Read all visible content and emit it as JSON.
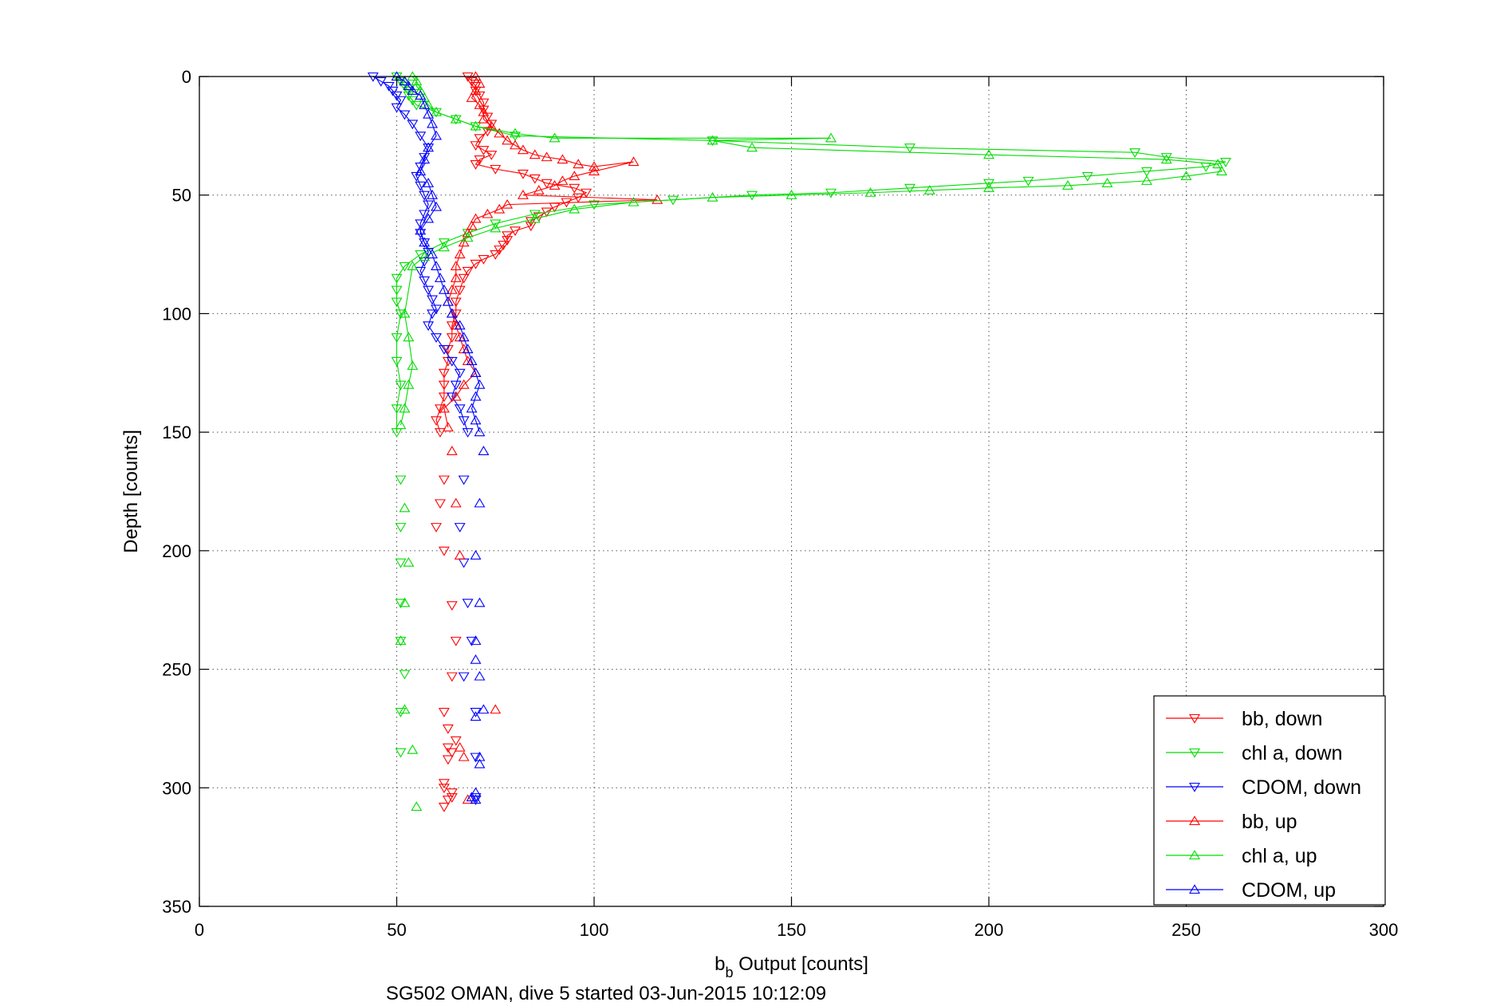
{
  "chart_data": {
    "type": "line",
    "xlabel": "b",
    "xlabel_sub": "b",
    "xlabel_rest": " Output [counts]",
    "ylabel": "Depth [counts]",
    "caption": "SG502 OMAN, dive 5 started 03-Jun-2015 10:12:09",
    "xlim": [
      0,
      300
    ],
    "ylim": [
      0,
      350
    ],
    "y_reversed": true,
    "x_ticks": [
      0,
      50,
      100,
      150,
      200,
      250,
      300
    ],
    "y_ticks": [
      0,
      50,
      100,
      150,
      200,
      250,
      300,
      350
    ],
    "grid": true,
    "legend_position": "bottom-right",
    "series": [
      {
        "name": "bb, down",
        "color": "#ff0000",
        "marker": "triangle-down",
        "x": [
          68,
          69,
          70,
          70,
          71,
          72,
          72,
          73,
          74,
          73,
          71,
          70,
          72,
          74,
          71,
          70,
          75,
          82,
          85,
          88,
          95,
          98,
          96,
          93,
          90,
          88,
          86,
          84,
          84,
          80,
          78,
          78,
          77,
          76,
          75,
          72,
          70,
          68,
          67,
          66,
          65,
          65,
          64,
          64,
          63,
          63,
          62,
          62,
          62,
          61,
          60,
          61,
          62,
          61,
          60,
          62,
          64,
          65,
          64,
          62,
          63,
          62,
          64,
          62,
          63,
          64,
          62,
          63,
          64,
          65,
          63
        ],
        "y": [
          0,
          2,
          4,
          6,
          8,
          11,
          14,
          17,
          20,
          23,
          26,
          29,
          31,
          33,
          35,
          37,
          39,
          41,
          43,
          45,
          47,
          49,
          51,
          53,
          55,
          57,
          59,
          61,
          63,
          65,
          67,
          69,
          71,
          73,
          75,
          77,
          79,
          82,
          85,
          90,
          95,
          100,
          105,
          110,
          115,
          120,
          125,
          130,
          135,
          140,
          145,
          150,
          170,
          180,
          190,
          200,
          223,
          238,
          253,
          268,
          283,
          298,
          304,
          308,
          305,
          302,
          300,
          288,
          285,
          280,
          275
        ]
      },
      {
        "name": "chl a, down",
        "color": "#00dd00",
        "marker": "triangle-down",
        "x": [
          50,
          51,
          52,
          53,
          53,
          54,
          55,
          60,
          65,
          70,
          80,
          130,
          180,
          237,
          245,
          260,
          255,
          240,
          225,
          210,
          200,
          180,
          160,
          140,
          120,
          100,
          85,
          75,
          68,
          62,
          56,
          52,
          50,
          50,
          50,
          51,
          50,
          50,
          51,
          50,
          50,
          51,
          51,
          51,
          51,
          51,
          52,
          51,
          51
        ],
        "y": [
          0,
          2,
          4,
          6,
          8,
          10,
          12,
          15,
          18,
          21,
          25,
          27,
          30,
          32,
          34,
          36,
          38,
          40,
          42,
          44,
          45,
          47,
          49,
          50,
          52,
          54,
          58,
          62,
          66,
          70,
          75,
          80,
          85,
          90,
          95,
          100,
          110,
          120,
          130,
          140,
          150,
          170,
          190,
          205,
          222,
          238,
          252,
          268,
          285
        ]
      },
      {
        "name": "CDOM, down",
        "color": "#0000ff",
        "marker": "triangle-down",
        "x": [
          44,
          46,
          48,
          49,
          50,
          51,
          50,
          52,
          54,
          56,
          58,
          57,
          56,
          55,
          56,
          57,
          58,
          57,
          56,
          56,
          57,
          58,
          57,
          56,
          57,
          58,
          59,
          60,
          59,
          58,
          60,
          62,
          64,
          66,
          65,
          64,
          66,
          67,
          68,
          67,
          66,
          67,
          68,
          69,
          67,
          70,
          70,
          70,
          70
        ],
        "y": [
          0,
          2,
          4,
          6,
          8,
          10,
          13,
          16,
          20,
          25,
          30,
          34,
          38,
          42,
          46,
          50,
          54,
          58,
          62,
          66,
          70,
          74,
          78,
          82,
          86,
          90,
          94,
          98,
          100,
          105,
          110,
          115,
          120,
          125,
          130,
          135,
          140,
          145,
          150,
          170,
          190,
          205,
          222,
          238,
          253,
          268,
          287,
          304,
          305
        ]
      },
      {
        "name": "bb, up",
        "color": "#ff0000",
        "marker": "triangle-up",
        "x": [
          70,
          71,
          70,
          69,
          71,
          72,
          72,
          74,
          76,
          78,
          80,
          82,
          85,
          88,
          92,
          96,
          100,
          110,
          100,
          95,
          92,
          90,
          86,
          82,
          116,
          78,
          76,
          73,
          70,
          69,
          68,
          67,
          66,
          65,
          65,
          64,
          63,
          64,
          65,
          66,
          67,
          68,
          70,
          67,
          65,
          62,
          63,
          64,
          65,
          66,
          75,
          66,
          67,
          68
        ],
        "y": [
          0,
          3,
          6,
          9,
          12,
          15,
          18,
          21,
          24,
          27,
          29,
          31,
          33,
          34,
          35,
          37,
          38,
          36,
          40,
          42,
          44,
          46,
          48,
          50,
          52,
          54,
          56,
          58,
          60,
          63,
          66,
          70,
          75,
          80,
          85,
          90,
          95,
          100,
          105,
          110,
          115,
          120,
          125,
          130,
          135,
          140,
          148,
          158,
          180,
          202,
          267,
          283,
          287,
          305
        ]
      },
      {
        "name": "chl a, up",
        "color": "#00dd00",
        "marker": "triangle-up",
        "x": [
          54,
          55,
          55,
          56,
          57,
          58,
          60,
          65,
          70,
          80,
          90,
          160,
          130,
          140,
          200,
          245,
          258,
          259,
          250,
          240,
          230,
          220,
          200,
          185,
          170,
          150,
          130,
          110,
          95,
          85,
          75,
          68,
          62,
          57,
          54,
          52,
          53,
          54,
          53,
          52,
          51,
          52,
          53,
          52,
          51,
          52,
          54,
          55
        ],
        "y": [
          0,
          2,
          4,
          6,
          9,
          12,
          15,
          18,
          21,
          24,
          26,
          26,
          27,
          30,
          33,
          35,
          37,
          40,
          42,
          44,
          45,
          46,
          47,
          48,
          49,
          50,
          51,
          53,
          56,
          60,
          64,
          68,
          72,
          76,
          80,
          100,
          110,
          122,
          130,
          140,
          147,
          182,
          205,
          222,
          238,
          267,
          284,
          308
        ]
      },
      {
        "name": "CDOM, up",
        "color": "#0000ff",
        "marker": "triangle-up",
        "x": [
          50,
          52,
          53,
          54,
          56,
          57,
          58,
          59,
          60,
          58,
          57,
          56,
          58,
          59,
          60,
          58,
          56,
          57,
          59,
          60,
          61,
          62,
          63,
          64,
          66,
          67,
          68,
          69,
          70,
          71,
          70,
          69,
          70,
          71,
          72,
          71,
          70,
          71,
          70,
          70,
          71,
          72,
          71,
          70,
          69,
          70,
          71,
          70
        ],
        "y": [
          0,
          2,
          4,
          6,
          8,
          12,
          16,
          20,
          25,
          30,
          35,
          40,
          45,
          50,
          55,
          60,
          65,
          70,
          75,
          80,
          85,
          90,
          95,
          100,
          105,
          110,
          115,
          120,
          125,
          130,
          135,
          140,
          145,
          150,
          158,
          180,
          202,
          222,
          238,
          246,
          253,
          267,
          287,
          302,
          304,
          305,
          290,
          270
        ]
      }
    ]
  }
}
